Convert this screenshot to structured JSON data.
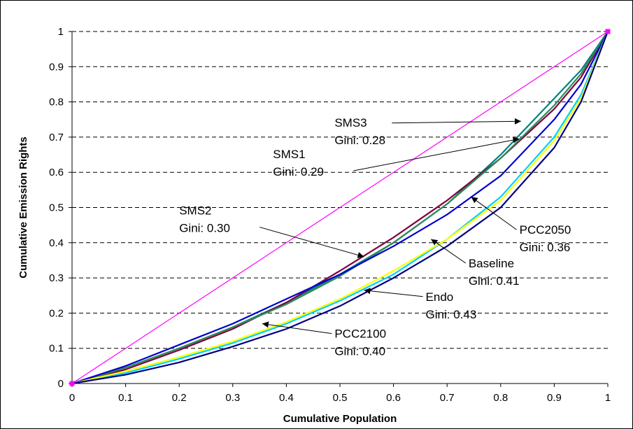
{
  "chart_data": {
    "type": "line",
    "title": "",
    "xlabel": "Cumulative Population",
    "ylabel": "Cumulative Emission Rights",
    "xlim": [
      0,
      1
    ],
    "ylim": [
      0,
      1
    ],
    "xticks": [
      "0",
      "0.1",
      "0.2",
      "0.3",
      "0.4",
      "0.5",
      "0.6",
      "0.7",
      "0.8",
      "0.9",
      "1"
    ],
    "yticks": [
      "0",
      "0.1",
      "0.2",
      "0.3",
      "0.4",
      "0.5",
      "0.6",
      "0.7",
      "0.8",
      "0.9",
      "1"
    ],
    "grid": "horizontal dashed",
    "legend": "none",
    "x": [
      0,
      0.1,
      0.2,
      0.3,
      0.4,
      0.5,
      0.6,
      0.7,
      0.8,
      0.9,
      0.95,
      1
    ],
    "series": [
      {
        "name": "",
        "color": "#ff00ff",
        "markers": true,
        "values": [
          0,
          0.1,
          0.2,
          0.3,
          0.4,
          0.5,
          0.6,
          0.7,
          0.8,
          0.9,
          0.95,
          1
        ]
      },
      {
        "name": "SMS3",
        "color": "#008080",
        "values": [
          0,
          0.045,
          0.1,
          0.16,
          0.23,
          0.31,
          0.4,
          0.51,
          0.65,
          0.81,
          0.89,
          1
        ]
      },
      {
        "name": "SMS1",
        "color": "#800040",
        "values": [
          0,
          0.04,
          0.095,
          0.155,
          0.23,
          0.32,
          0.415,
          0.52,
          0.64,
          0.78,
          0.87,
          1
        ]
      },
      {
        "name": "SMS2",
        "color": "#2e8b57",
        "values": [
          0,
          0.045,
          0.1,
          0.16,
          0.225,
          0.305,
          0.4,
          0.51,
          0.64,
          0.79,
          0.88,
          1
        ]
      },
      {
        "name": "PCC2050",
        "color": "#0000cd",
        "values": [
          0,
          0.05,
          0.11,
          0.17,
          0.24,
          0.31,
          0.39,
          0.48,
          0.59,
          0.75,
          0.85,
          1
        ]
      },
      {
        "name": "Baseline",
        "color": "#00d0ff",
        "values": [
          0,
          0.03,
          0.07,
          0.115,
          0.17,
          0.235,
          0.31,
          0.41,
          0.53,
          0.7,
          0.82,
          1
        ]
      },
      {
        "name": "PCC2100",
        "color": "#ffff00",
        "values": [
          0,
          0.035,
          0.075,
          0.12,
          0.175,
          0.24,
          0.32,
          0.41,
          0.52,
          0.69,
          0.81,
          1
        ]
      },
      {
        "name": "Endo",
        "color": "#000080",
        "values": [
          0,
          0.025,
          0.06,
          0.105,
          0.155,
          0.22,
          0.3,
          0.39,
          0.5,
          0.67,
          0.8,
          1
        ]
      }
    ],
    "annotations": [
      {
        "label": "SMS3",
        "sub": "Gini: 0.28",
        "tx": 0.49,
        "ty": 0.73,
        "ax": 0.838,
        "ay": 0.745
      },
      {
        "label": "SMS1",
        "sub": "Gini: 0.29",
        "tx": 0.375,
        "ty": 0.64,
        "ax": 0.835,
        "ay": 0.695
      },
      {
        "label": "SMS2",
        "sub": "Gini: 0.30",
        "tx": 0.2,
        "ty": 0.48,
        "ax": 0.545,
        "ay": 0.36
      },
      {
        "label": "PCC2050",
        "sub": "Gini: 0.36",
        "tx": 0.835,
        "ty": 0.425,
        "ax": 0.745,
        "ay": 0.53
      },
      {
        "label": "Baseline",
        "sub": "Gini: 0.41",
        "tx": 0.74,
        "ty": 0.33,
        "ax": 0.67,
        "ay": 0.41
      },
      {
        "label": "Endo",
        "sub": "Gini: 0.43",
        "tx": 0.66,
        "ty": 0.235,
        "ax": 0.545,
        "ay": 0.265
      },
      {
        "label": "PCC2100",
        "sub": "Gini: 0.40",
        "tx": 0.49,
        "ty": 0.13,
        "ax": 0.355,
        "ay": 0.17
      }
    ]
  }
}
